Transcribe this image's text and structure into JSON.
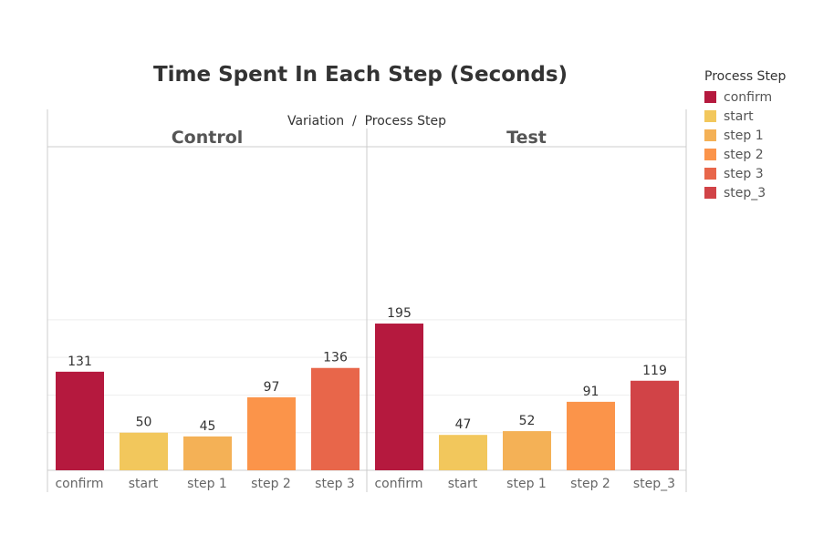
{
  "chart_data": {
    "type": "bar",
    "title": "Time Spent In Each Step (Seconds)",
    "column_header": "Variation  /  Process Step",
    "ylim": [
      0,
      220
    ],
    "grid": true,
    "legend_position": "right",
    "panes": [
      {
        "name": "Control",
        "categories": [
          "confirm",
          "start",
          "step 1",
          "step 2",
          "step 3"
        ],
        "values": [
          131,
          50,
          45,
          97,
          136
        ]
      },
      {
        "name": "Test",
        "categories": [
          "confirm",
          "start",
          "step 1",
          "step 2",
          "step_3"
        ],
        "values": [
          195,
          47,
          52,
          91,
          119
        ]
      }
    ],
    "legend": {
      "title": "Process Step",
      "items": [
        {
          "label": "confirm",
          "color": "#b5193e"
        },
        {
          "label": "start",
          "color": "#f2c75c"
        },
        {
          "label": "step 1",
          "color": "#f4b156"
        },
        {
          "label": "step 2",
          "color": "#fb944a"
        },
        {
          "label": "step 3",
          "color": "#e8664a"
        },
        {
          "label": "step_3",
          "color": "#d14347"
        }
      ]
    }
  }
}
